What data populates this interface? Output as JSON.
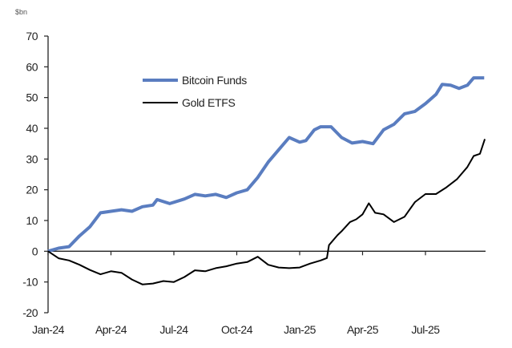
{
  "chart_data": {
    "type": "line",
    "title": "",
    "unit_label": "$bn",
    "xlabel": "",
    "ylabel": "",
    "ylim": [
      -20,
      70
    ],
    "yticks": [
      70,
      60,
      50,
      40,
      30,
      20,
      10,
      0,
      -10,
      -20
    ],
    "xlim": [
      "2024-01-01",
      "2025-09-27"
    ],
    "xticks": [
      {
        "date": "2024-01-01",
        "label": "Jan-24"
      },
      {
        "date": "2024-04-01",
        "label": "Apr-24"
      },
      {
        "date": "2024-07-01",
        "label": "Jul-24"
      },
      {
        "date": "2024-10-01",
        "label": "Oct-24"
      },
      {
        "date": "2025-01-01",
        "label": "Jan-25"
      },
      {
        "date": "2025-04-01",
        "label": "Apr-25"
      },
      {
        "date": "2025-07-01",
        "label": "Jul-25"
      }
    ],
    "grid": false,
    "legend_placement": "top-left",
    "series": [
      {
        "name": "Bitcoin Funds",
        "color": "#5a7dc0",
        "points": [
          [
            "2024-01-01",
            0
          ],
          [
            "2024-01-16",
            1
          ],
          [
            "2024-02-01",
            1.5
          ],
          [
            "2024-02-16",
            5
          ],
          [
            "2024-03-01",
            8
          ],
          [
            "2024-03-16",
            12.5
          ],
          [
            "2024-04-01",
            13
          ],
          [
            "2024-04-16",
            13.5
          ],
          [
            "2024-05-01",
            13
          ],
          [
            "2024-05-16",
            14.5
          ],
          [
            "2024-06-01",
            15
          ],
          [
            "2024-06-07",
            16.8
          ],
          [
            "2024-06-25",
            15.5
          ],
          [
            "2024-07-16",
            17
          ],
          [
            "2024-08-01",
            18.5
          ],
          [
            "2024-08-16",
            18
          ],
          [
            "2024-09-01",
            18.5
          ],
          [
            "2024-09-16",
            17.5
          ],
          [
            "2024-10-01",
            19
          ],
          [
            "2024-10-16",
            20
          ],
          [
            "2024-11-01",
            24
          ],
          [
            "2024-11-16",
            29
          ],
          [
            "2024-12-01",
            33
          ],
          [
            "2024-12-16",
            37
          ],
          [
            "2025-01-01",
            35.5
          ],
          [
            "2025-01-10",
            36
          ],
          [
            "2025-01-22",
            39.5
          ],
          [
            "2025-02-01",
            40.5
          ],
          [
            "2025-02-16",
            40.5
          ],
          [
            "2025-03-01",
            37
          ],
          [
            "2025-03-16",
            35.2
          ],
          [
            "2025-04-01",
            35.7
          ],
          [
            "2025-04-16",
            35
          ],
          [
            "2025-05-01",
            39.5
          ],
          [
            "2025-05-16",
            41.3
          ],
          [
            "2025-06-01",
            44.7
          ],
          [
            "2025-06-16",
            45.5
          ],
          [
            "2025-07-01",
            48
          ],
          [
            "2025-07-16",
            51
          ],
          [
            "2025-07-25",
            54.3
          ],
          [
            "2025-08-07",
            54
          ],
          [
            "2025-08-19",
            53
          ],
          [
            "2025-09-01",
            54
          ],
          [
            "2025-09-10",
            56.4
          ],
          [
            "2025-09-25",
            56.4
          ]
        ]
      },
      {
        "name": "Gold ETFS",
        "color": "#000000",
        "points": [
          [
            "2024-01-01",
            0
          ],
          [
            "2024-01-16",
            -2.3
          ],
          [
            "2024-02-01",
            -3
          ],
          [
            "2024-02-16",
            -4.4
          ],
          [
            "2024-03-01",
            -6.1
          ],
          [
            "2024-03-16",
            -7.5
          ],
          [
            "2024-04-01",
            -6.5
          ],
          [
            "2024-04-16",
            -7
          ],
          [
            "2024-05-01",
            -9.2
          ],
          [
            "2024-05-16",
            -10.8
          ],
          [
            "2024-06-01",
            -10.5
          ],
          [
            "2024-06-16",
            -9.7
          ],
          [
            "2024-07-01",
            -10
          ],
          [
            "2024-07-16",
            -8.4
          ],
          [
            "2024-08-01",
            -6.2
          ],
          [
            "2024-08-16",
            -6.5
          ],
          [
            "2024-09-01",
            -5.5
          ],
          [
            "2024-09-16",
            -4.9
          ],
          [
            "2024-10-01",
            -4
          ],
          [
            "2024-10-16",
            -3.5
          ],
          [
            "2024-11-01",
            -1.8
          ],
          [
            "2024-11-16",
            -4.4
          ],
          [
            "2024-12-01",
            -5.3
          ],
          [
            "2024-12-16",
            -5.5
          ],
          [
            "2025-01-01",
            -5.3
          ],
          [
            "2025-01-16",
            -4
          ],
          [
            "2025-02-01",
            -3
          ],
          [
            "2025-02-10",
            -2.2
          ],
          [
            "2025-02-13",
            2
          ],
          [
            "2025-02-25",
            5.2
          ],
          [
            "2025-03-01",
            6.5
          ],
          [
            "2025-03-13",
            9.5
          ],
          [
            "2025-03-22",
            10.4
          ],
          [
            "2025-04-01",
            12
          ],
          [
            "2025-04-10",
            15.6
          ],
          [
            "2025-04-19",
            12.5
          ],
          [
            "2025-05-01",
            12
          ],
          [
            "2025-05-16",
            9.5
          ],
          [
            "2025-06-01",
            11.2
          ],
          [
            "2025-06-16",
            16
          ],
          [
            "2025-07-01",
            18.6
          ],
          [
            "2025-07-16",
            18.6
          ],
          [
            "2025-08-01",
            20.8
          ],
          [
            "2025-08-16",
            23.4
          ],
          [
            "2025-09-01",
            27.4
          ],
          [
            "2025-09-10",
            31
          ],
          [
            "2025-09-19",
            31.7
          ],
          [
            "2025-09-26",
            36.5
          ]
        ]
      }
    ]
  }
}
